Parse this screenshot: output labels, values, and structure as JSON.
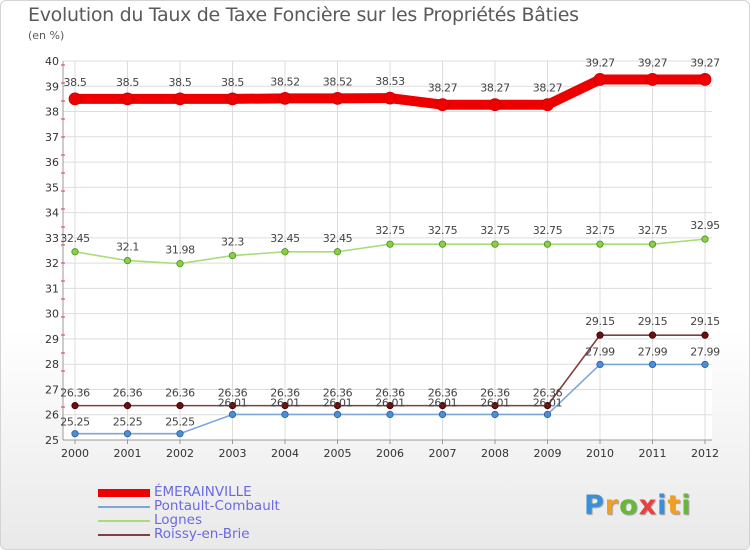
{
  "header": {
    "title": "Evolution du Taux de Taxe Foncière sur les Propriétés Bâties",
    "subtitle": "(en %)"
  },
  "chart_data": {
    "type": "line",
    "title": "Evolution du Taux de Taxe Foncière sur les Propriétés Bâties",
    "ylabel": "(en %)",
    "xlabel": "",
    "ylim": [
      25,
      40
    ],
    "yticks": [
      25,
      26,
      27,
      28,
      29,
      30,
      31,
      32,
      33,
      34,
      35,
      36,
      37,
      38,
      39,
      40
    ],
    "categories": [
      "2000",
      "2001",
      "2002",
      "2003",
      "2004",
      "2005",
      "2006",
      "2007",
      "2008",
      "2009",
      "2010",
      "2011",
      "2012"
    ],
    "series": [
      {
        "name": "ÉMERAINVILLE",
        "color": "#ee0000",
        "values": [
          38.5,
          38.5,
          38.5,
          38.5,
          38.52,
          38.52,
          38.53,
          38.27,
          38.27,
          38.27,
          39.27,
          39.27,
          39.27
        ],
        "labels": [
          "38.5",
          "38.5",
          "38.5",
          "38.5",
          "38.52",
          "38.52",
          "38.53",
          "38.27",
          "38.27",
          "38.27",
          "39.27",
          "39.27",
          "39.27"
        ]
      },
      {
        "name": "Pontault-Combault",
        "color": "#7fa8d8",
        "values": [
          25.25,
          25.25,
          25.25,
          26.01,
          26.01,
          26.01,
          26.01,
          26.01,
          26.01,
          26.01,
          27.99,
          27.99,
          27.99
        ],
        "labels": [
          "25.25",
          "25.25",
          "25.25",
          "26.01",
          "26.01",
          "26.01",
          "26.01",
          "26.01",
          "26.01",
          "26.01",
          "27.99",
          "27.99",
          "27.99"
        ]
      },
      {
        "name": "Lognes",
        "color": "#a8dc78",
        "values": [
          32.45,
          32.1,
          31.98,
          32.3,
          32.45,
          32.45,
          32.75,
          32.75,
          32.75,
          32.75,
          32.75,
          32.75,
          32.95
        ],
        "labels": [
          "32.45",
          "32.1",
          "31.98",
          "32.3",
          "32.45",
          "32.45",
          "32.75",
          "32.75",
          "32.75",
          "32.75",
          "32.75",
          "32.75",
          "32.95"
        ]
      },
      {
        "name": "Roissy-en-Brie",
        "color": "#804040",
        "values": [
          26.36,
          26.36,
          26.36,
          26.36,
          26.36,
          26.36,
          26.36,
          26.36,
          26.36,
          26.36,
          29.15,
          29.15,
          29.15
        ],
        "labels": [
          "26.36",
          "26.36",
          "26.36",
          "26.36",
          "26.36",
          "26.36",
          "26.36",
          "26.36",
          "26.36",
          "26.36",
          "29.15",
          "29.15",
          "29.15"
        ]
      }
    ],
    "legend": "bottom-left"
  },
  "logo": {
    "letters": [
      "P",
      "r",
      "o",
      "x",
      "i",
      "t",
      "i"
    ],
    "colors": [
      "#3a8fd8",
      "#f0a020",
      "#66b838",
      "#e84040",
      "#3a8fd8",
      "#f0a020",
      "#66b838"
    ]
  }
}
